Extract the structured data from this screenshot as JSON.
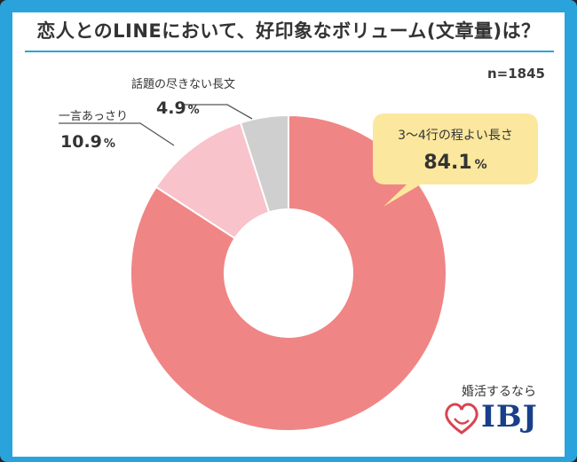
{
  "title": "恋人とのLINEにおいて、好印象なボリューム(文章量)は？",
  "sample_size_label": "n=1845",
  "logo": {
    "caption": "婚活するなら",
    "text": "IBJ"
  },
  "colors": {
    "frame": "#2aa3dc",
    "title_rule": "#2aa3dc",
    "slice_main": "#f08585",
    "slice_short": "#f8c3cb",
    "slice_long": "#cfcfcf",
    "callout": "#fbe79d",
    "leader": "#555555",
    "logo_heart": "#d94452",
    "logo_text": "#1a3f8a"
  },
  "chart_data": {
    "type": "pie",
    "donut": true,
    "title": "恋人とのLINEにおいて、好印象なボリューム(文章量)は？",
    "n": 1845,
    "unit": "%",
    "slices": [
      {
        "label": "3〜4行の程よい長さ",
        "value": 84.1,
        "value_text": "84.1",
        "color": "#f08585"
      },
      {
        "label": "一言あっさり",
        "value": 10.9,
        "value_text": "10.9",
        "color": "#f8c3cb"
      },
      {
        "label": "話題の尽きない長文",
        "value": 4.9,
        "value_text": "4.9",
        "color": "#cfcfcf"
      }
    ]
  }
}
